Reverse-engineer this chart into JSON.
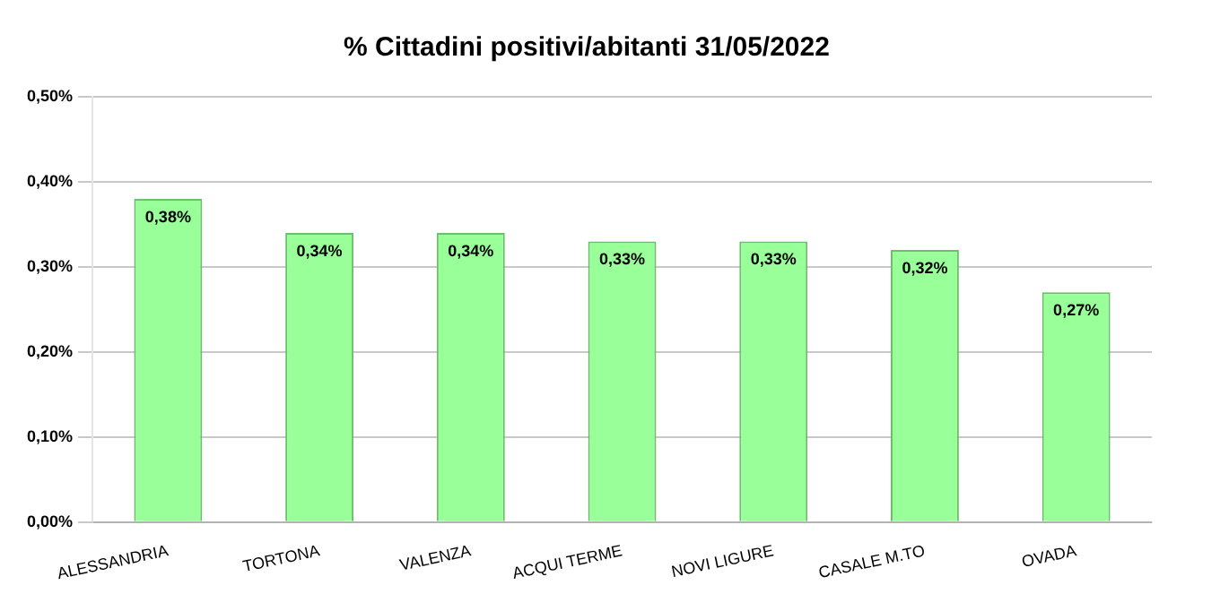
{
  "chart_data": {
    "type": "bar",
    "title": "% Cittadini positivi/abitanti 31/05/2022",
    "categories": [
      "ALESSANDRIA",
      "TORTONA",
      "VALENZA",
      "ACQUI TERME",
      "NOVI LIGURE",
      "CASALE M.TO",
      "OVADA"
    ],
    "values": [
      0.38,
      0.34,
      0.34,
      0.33,
      0.33,
      0.32,
      0.27
    ],
    "value_labels": [
      "0,38%",
      "0,34%",
      "0,34%",
      "0,33%",
      "0,33%",
      "0,32%",
      "0,27%"
    ],
    "color": "#99ff99",
    "ylim": [
      0,
      0.5
    ],
    "yticks": [
      {
        "value": 0,
        "label": "0,00%"
      },
      {
        "value": 0.1,
        "label": "0,10%"
      },
      {
        "value": 0.2,
        "label": "0,20%"
      },
      {
        "value": 0.3,
        "label": "0,30%"
      },
      {
        "value": 0.4,
        "label": "0,40%"
      },
      {
        "value": 0.5,
        "label": "0,50%"
      }
    ],
    "grid": "y",
    "legend": false
  }
}
